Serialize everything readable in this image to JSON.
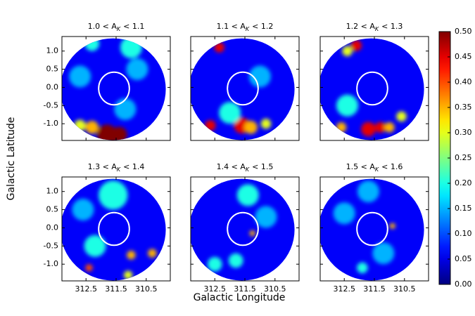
{
  "chart_data": {
    "type": "density-map",
    "x_label": "Galactic Longitude",
    "y_label": "Galactic Latitude",
    "xlim": [
      313.3,
      309.7
    ],
    "ylim": [
      -1.46,
      1.4
    ],
    "xticks": [
      312.5,
      311.5,
      310.5
    ],
    "yticks": [
      {
        "value": -1,
        "label": "-1.0"
      },
      {
        "value": -0.5,
        "label": "-0.5"
      },
      {
        "value": 0,
        "label": "0.0"
      },
      {
        "value": 0.5,
        "label": "0.5"
      },
      {
        "value": 1,
        "label": "1.0"
      }
    ],
    "colormap": "jet",
    "clim": [
      0,
      0.5
    ],
    "cbar_ticks": [
      {
        "value": 0,
        "label": "0.00"
      },
      {
        "value": 0.05,
        "label": "0.05"
      },
      {
        "value": 0.1,
        "label": "0.10"
      },
      {
        "value": 0.15,
        "label": "0.15"
      },
      {
        "value": 0.2,
        "label": "0.20"
      },
      {
        "value": 0.25,
        "label": "0.25"
      },
      {
        "value": 0.3,
        "label": "0.30"
      },
      {
        "value": 0.35,
        "label": "0.35"
      },
      {
        "value": 0.4,
        "label": "0.40"
      },
      {
        "value": 0.45,
        "label": "0.45"
      },
      {
        "value": 0.5,
        "label": "0.50"
      }
    ],
    "field": {
      "center": [
        311.6,
        -0.05
      ],
      "radius": [
        1.75,
        1.4
      ]
    },
    "region": {
      "center": [
        311.57,
        -0.03
      ],
      "radius": [
        0.51,
        0.45
      ],
      "color": "#ffffff"
    },
    "panels": [
      {
        "title": {
          "prefix": "1.0 < A",
          "sub": "K",
          "suffix": "< 1.1"
        },
        "background": 0.06,
        "peaks": [
          {
            "lon": 311.8,
            "lat": -1.3,
            "value": 0.5,
            "size": 0.28
          },
          {
            "lon": 311.4,
            "lat": -1.3,
            "value": 0.5,
            "size": 0.22
          },
          {
            "lon": 312.3,
            "lat": -1.1,
            "value": 0.35,
            "size": 0.18
          },
          {
            "lon": 312.7,
            "lat": -1.05,
            "value": 0.3,
            "size": 0.16
          },
          {
            "lon": 312.3,
            "lat": 1.2,
            "value": 0.2,
            "size": 0.2
          },
          {
            "lon": 311.0,
            "lat": 1.1,
            "value": 0.2,
            "size": 0.3
          },
          {
            "lon": 310.8,
            "lat": 0.5,
            "value": 0.15,
            "size": 0.3
          },
          {
            "lon": 312.7,
            "lat": 0.3,
            "value": 0.15,
            "size": 0.3
          },
          {
            "lon": 311.2,
            "lat": -0.6,
            "value": 0.15,
            "size": 0.3
          }
        ]
      },
      {
        "title": {
          "prefix": "1.1 < A",
          "sub": "K",
          "suffix": "< 1.2"
        },
        "background": 0.06,
        "peaks": [
          {
            "lon": 312.35,
            "lat": 1.1,
            "value": 0.45,
            "size": 0.14
          },
          {
            "lon": 312.65,
            "lat": -1.05,
            "value": 0.45,
            "size": 0.15
          },
          {
            "lon": 311.6,
            "lat": -1.05,
            "value": 0.45,
            "size": 0.22
          },
          {
            "lon": 311.3,
            "lat": -1.1,
            "value": 0.35,
            "size": 0.18
          },
          {
            "lon": 310.8,
            "lat": -1.0,
            "value": 0.3,
            "size": 0.14
          },
          {
            "lon": 312.0,
            "lat": -0.7,
            "value": 0.2,
            "size": 0.3
          },
          {
            "lon": 311.0,
            "lat": 0.3,
            "value": 0.15,
            "size": 0.3
          }
        ]
      },
      {
        "title": {
          "prefix": "1.2 < A",
          "sub": "K",
          "suffix": "< 1.3"
        },
        "background": 0.06,
        "peaks": [
          {
            "lon": 312.1,
            "lat": 1.15,
            "value": 0.45,
            "size": 0.15
          },
          {
            "lon": 312.4,
            "lat": 1.0,
            "value": 0.3,
            "size": 0.14
          },
          {
            "lon": 311.7,
            "lat": -1.15,
            "value": 0.45,
            "size": 0.2
          },
          {
            "lon": 311.3,
            "lat": -1.1,
            "value": 0.45,
            "size": 0.15
          },
          {
            "lon": 311.0,
            "lat": -1.1,
            "value": 0.35,
            "size": 0.14
          },
          {
            "lon": 312.6,
            "lat": -1.1,
            "value": 0.35,
            "size": 0.14
          },
          {
            "lon": 310.6,
            "lat": -0.8,
            "value": 0.3,
            "size": 0.14
          },
          {
            "lon": 312.4,
            "lat": -0.5,
            "value": 0.2,
            "size": 0.3
          }
        ]
      },
      {
        "title": {
          "prefix": "1.3 < A",
          "sub": "K",
          "suffix": "< 1.4"
        },
        "background": 0.06,
        "peaks": [
          {
            "lon": 312.4,
            "lat": -1.1,
            "value": 0.4,
            "size": 0.1
          },
          {
            "lon": 311.0,
            "lat": -0.75,
            "value": 0.35,
            "size": 0.12
          },
          {
            "lon": 310.3,
            "lat": -0.7,
            "value": 0.35,
            "size": 0.12
          },
          {
            "lon": 311.1,
            "lat": -1.3,
            "value": 0.3,
            "size": 0.12
          },
          {
            "lon": 312.2,
            "lat": -0.5,
            "value": 0.2,
            "size": 0.3
          },
          {
            "lon": 311.6,
            "lat": 0.9,
            "value": 0.2,
            "size": 0.4
          },
          {
            "lon": 312.6,
            "lat": 0.5,
            "value": 0.15,
            "size": 0.3
          }
        ]
      },
      {
        "title": {
          "prefix": "1.4 < A",
          "sub": "K",
          "suffix": "< 1.5"
        },
        "background": 0.06,
        "peaks": [
          {
            "lon": 311.25,
            "lat": -0.15,
            "value": 0.35,
            "size": 0.08
          },
          {
            "lon": 311.8,
            "lat": -0.9,
            "value": 0.2,
            "size": 0.2
          },
          {
            "lon": 312.5,
            "lat": -1.0,
            "value": 0.2,
            "size": 0.2
          },
          {
            "lon": 311.4,
            "lat": 0.9,
            "value": 0.2,
            "size": 0.3
          },
          {
            "lon": 310.8,
            "lat": 0.3,
            "value": 0.15,
            "size": 0.3
          }
        ]
      },
      {
        "title": {
          "prefix": "1.5 < A",
          "sub": "K",
          "suffix": "< 1.6"
        },
        "background": 0.06,
        "peaks": [
          {
            "lon": 310.9,
            "lat": 0.05,
            "value": 0.35,
            "size": 0.08
          },
          {
            "lon": 311.9,
            "lat": -1.1,
            "value": 0.2,
            "size": 0.15
          },
          {
            "lon": 311.2,
            "lat": -0.7,
            "value": 0.15,
            "size": 0.3
          },
          {
            "lon": 312.5,
            "lat": 0.4,
            "value": 0.15,
            "size": 0.3
          },
          {
            "lon": 311.7,
            "lat": 1.0,
            "value": 0.15,
            "size": 0.3
          }
        ]
      }
    ]
  }
}
